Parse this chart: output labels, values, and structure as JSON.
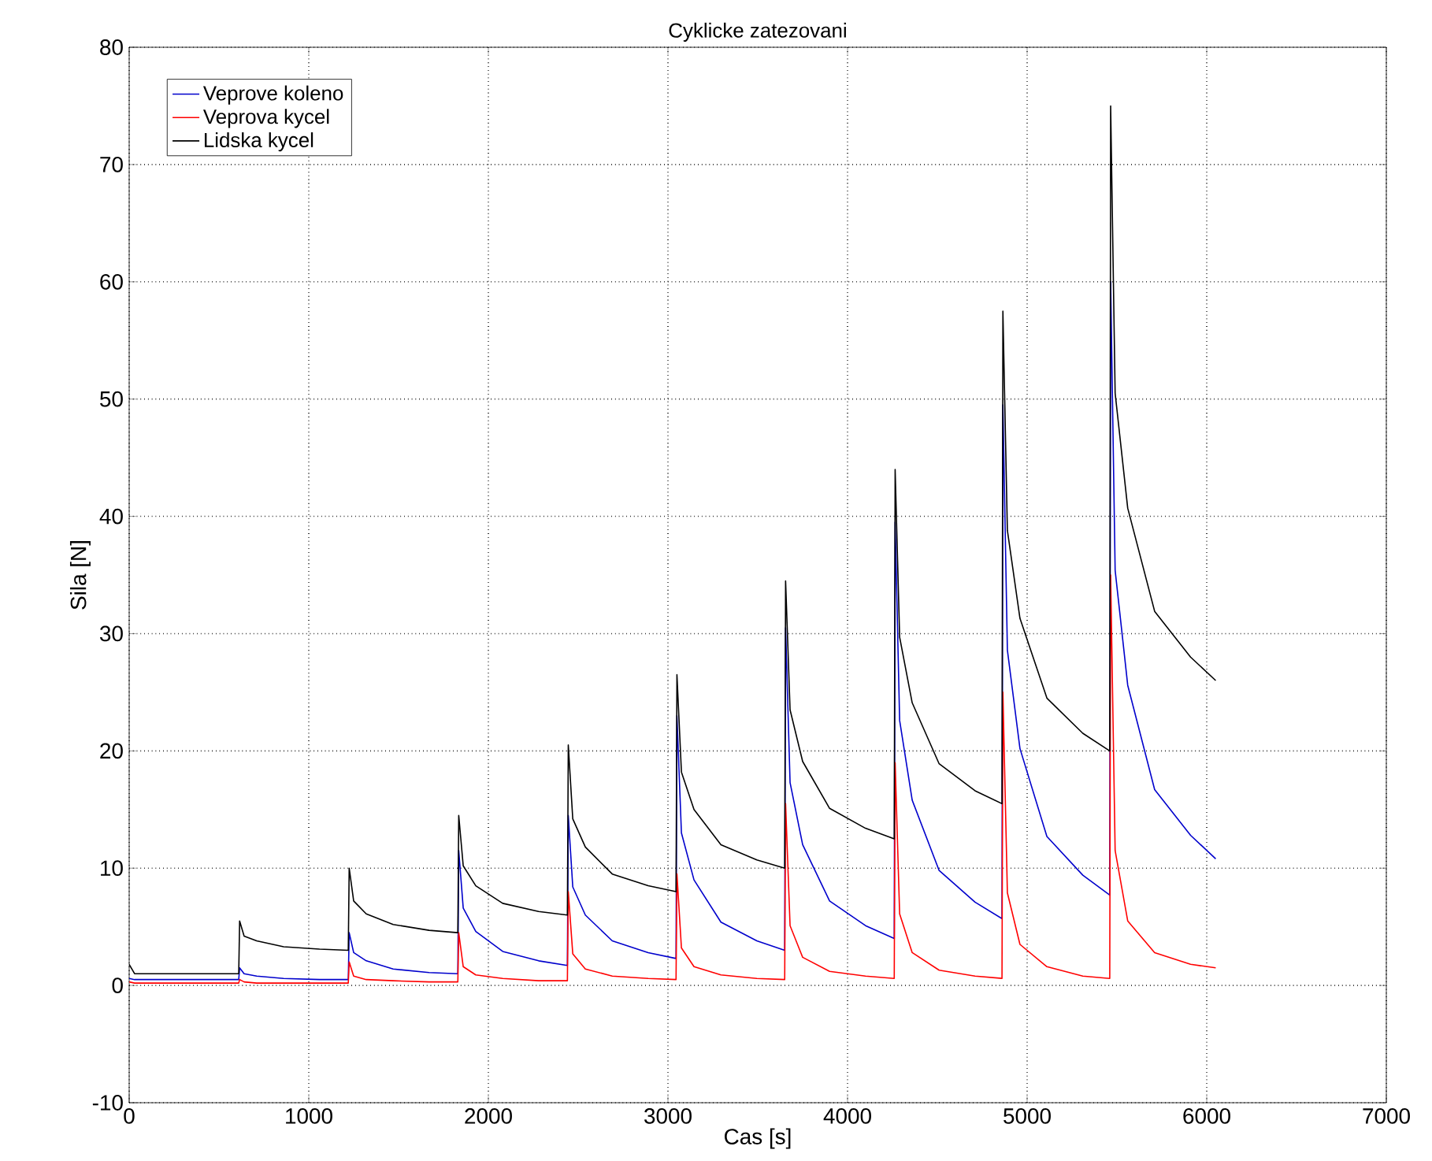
{
  "chart_data": {
    "type": "line",
    "title": "Cyklicke zatezovani",
    "xlabel": "Cas [s]",
    "ylabel": "Sila [N]",
    "xlim": [
      0,
      7000
    ],
    "xticks": [
      0,
      1000,
      2000,
      3000,
      4000,
      5000,
      6000,
      7000
    ],
    "ylim": [
      -10,
      80
    ],
    "yticks": [
      -10,
      0,
      10,
      20,
      30,
      40,
      50,
      60,
      70,
      80
    ],
    "grid": true,
    "legend": "top left",
    "marker": "none",
    "line_style": "solid",
    "x": [
      0,
      30,
      610,
      615,
      640,
      710,
      860,
      1060,
      1220,
      1225,
      1250,
      1320,
      1470,
      1670,
      1830,
      1835,
      1860,
      1930,
      2080,
      2280,
      2440,
      2445,
      2470,
      2540,
      2690,
      2890,
      3045,
      3050,
      3075,
      3145,
      3295,
      3495,
      3650,
      3655,
      3680,
      3750,
      3900,
      4100,
      4260,
      4265,
      4290,
      4360,
      4510,
      4710,
      4860,
      4865,
      4890,
      4960,
      5110,
      5310,
      5460,
      5465,
      5490,
      5560,
      5710,
      5910,
      6050
    ],
    "series": [
      {
        "name": "Veprove koleno",
        "color": "#0000cc",
        "values": [
          0.6,
          0.5,
          0.5,
          1.5,
          1.0,
          0.8,
          0.6,
          0.5,
          0.5,
          4.5,
          2.8,
          2.1,
          1.4,
          1.1,
          1,
          11.5,
          6.6,
          4.6,
          2.9,
          2.1,
          1.7,
          14.5,
          8.4,
          6.0,
          3.8,
          2.8,
          2.3,
          23,
          13.0,
          9.0,
          5.4,
          3.8,
          3,
          30.5,
          17.3,
          12.0,
          7.2,
          5.1,
          4,
          39.5,
          22.6,
          15.8,
          9.8,
          7.1,
          5.7,
          49.5,
          28.6,
          20.2,
          12.7,
          9.4,
          7.7,
          60,
          35.4,
          25.6,
          16.7,
          12.8,
          10.8
        ]
      },
      {
        "name": "Veprova kycel",
        "color": "#ff0000",
        "values": [
          0.3,
          0.2,
          0.2,
          0.5,
          0.3,
          0.2,
          0.2,
          0.2,
          0.2,
          2,
          0.8,
          0.5,
          0.4,
          0.3,
          0.3,
          4.5,
          1.6,
          0.9,
          0.6,
          0.4,
          0.4,
          8,
          2.7,
          1.4,
          0.8,
          0.6,
          0.5,
          9.5,
          3.2,
          1.6,
          0.9,
          0.6,
          0.5,
          15.5,
          5.1,
          2.4,
          1.2,
          0.8,
          0.6,
          19,
          6.1,
          2.8,
          1.3,
          0.8,
          0.6,
          25,
          7.9,
          3.5,
          1.6,
          0.8,
          0.6,
          35,
          11.5,
          5.5,
          2.8,
          1.8,
          1.5
        ]
      },
      {
        "name": "Lidska kycel",
        "color": "#000000",
        "values": [
          1.8,
          1.0,
          1,
          5.5,
          4.2,
          3.8,
          3.3,
          3.1,
          3,
          10,
          7.2,
          6.1,
          5.2,
          4.7,
          4.5,
          14.5,
          10.2,
          8.5,
          7.0,
          6.3,
          6,
          20.5,
          14.2,
          11.8,
          9.5,
          8.5,
          8,
          26.5,
          18.2,
          15.0,
          12.0,
          10.7,
          10,
          34.5,
          23.5,
          19.1,
          15.1,
          13.4,
          12.5,
          44,
          29.7,
          24.1,
          18.9,
          16.6,
          15.5,
          57.5,
          38.8,
          31.3,
          24.5,
          21.5,
          20,
          75,
          50.5,
          40.7,
          31.9,
          28.0,
          26
        ]
      }
    ]
  }
}
